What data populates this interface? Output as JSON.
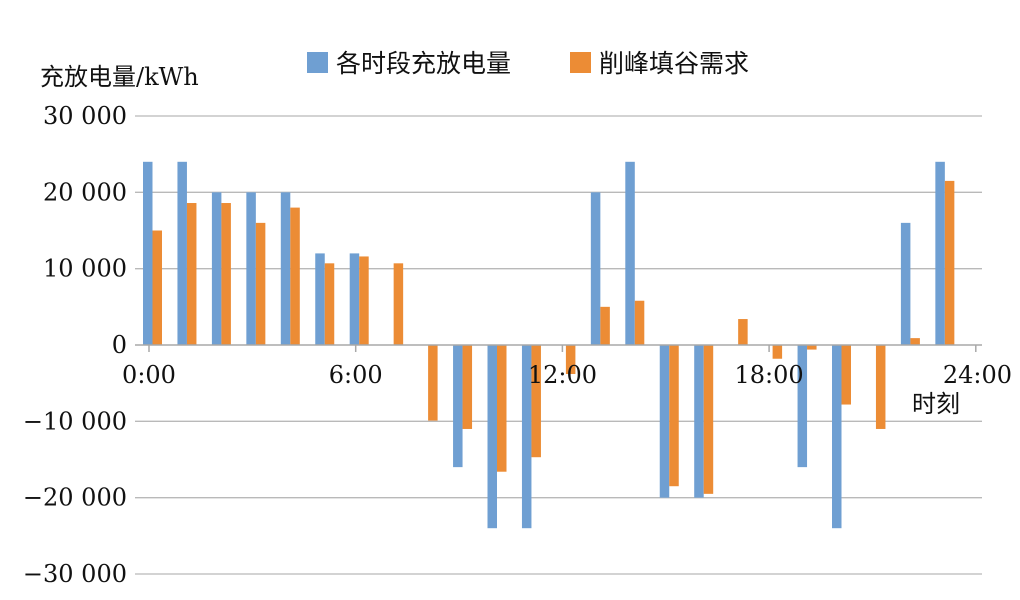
{
  "chart_data": {
    "type": "bar",
    "ylabel": "充放电量/kWh",
    "xlabel": "时刻",
    "ylim": [
      -30000,
      30000
    ],
    "yticks": [
      {
        "value": 30000,
        "label": "30 000"
      },
      {
        "value": 20000,
        "label": "20 000"
      },
      {
        "value": 10000,
        "label": "10 000"
      },
      {
        "value": 0,
        "label": "0"
      },
      {
        "value": -10000,
        "label": "−10 000"
      },
      {
        "value": -20000,
        "label": "−20 000"
      },
      {
        "value": -30000,
        "label": "−30 000"
      }
    ],
    "xticks": [
      {
        "hour": 0,
        "label": "0:00"
      },
      {
        "hour": 6,
        "label": "6:00"
      },
      {
        "hour": 12,
        "label": "12:00"
      },
      {
        "hour": 18,
        "label": "18:00"
      },
      {
        "hour": 24,
        "label": "24:00"
      }
    ],
    "hours": [
      0,
      1,
      2,
      3,
      4,
      5,
      6,
      7,
      8,
      9,
      10,
      11,
      12,
      13,
      14,
      15,
      16,
      17,
      18,
      19,
      20,
      21,
      22,
      23
    ],
    "grid": true,
    "legend_position": "top",
    "series": [
      {
        "name": "各时段充放电量",
        "color": "#6f9fd2",
        "values": [
          24000,
          24000,
          20000,
          20000,
          20000,
          12000,
          12000,
          0,
          0,
          -16000,
          -24000,
          -24000,
          0,
          20000,
          24000,
          -20000,
          -20000,
          0,
          0,
          -16000,
          -24000,
          0,
          16000,
          24000
        ]
      },
      {
        "name": "削峰填谷需求",
        "color": "#ec8c35",
        "values": [
          15000,
          18600,
          18600,
          16000,
          18000,
          10700,
          11600,
          10700,
          -9900,
          -11000,
          -16600,
          -14700,
          -3800,
          5000,
          5800,
          -18500,
          -19500,
          3400,
          -1800,
          -600,
          -7800,
          -11000,
          900,
          21500
        ]
      }
    ]
  }
}
